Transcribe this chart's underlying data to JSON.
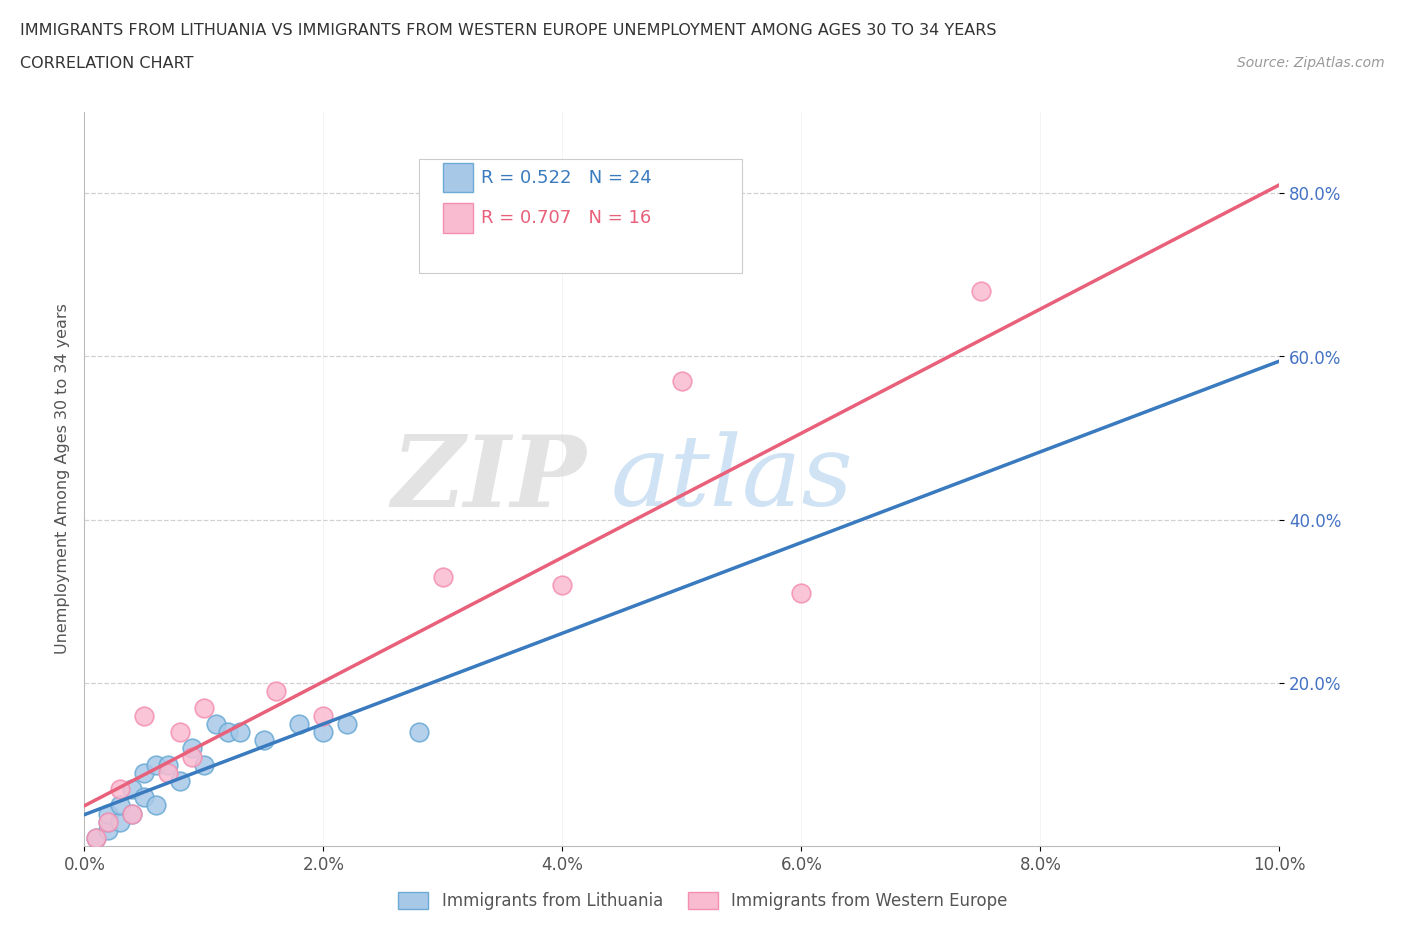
{
  "title_line1": "IMMIGRANTS FROM LITHUANIA VS IMMIGRANTS FROM WESTERN EUROPE UNEMPLOYMENT AMONG AGES 30 TO 34 YEARS",
  "title_line2": "CORRELATION CHART",
  "source_text": "Source: ZipAtlas.com",
  "ylabel": "Unemployment Among Ages 30 to 34 years",
  "xlim": [
    0.0,
    0.1
  ],
  "ylim": [
    0.0,
    0.9
  ],
  "ytick_vals": [
    0.2,
    0.4,
    0.6,
    0.8
  ],
  "xtick_vals": [
    0.0,
    0.02,
    0.04,
    0.06,
    0.08,
    0.1
  ],
  "legend_r1_R": "0.522",
  "legend_r1_N": "24",
  "legend_r2_R": "0.707",
  "legend_r2_N": "16",
  "color_blue_fill": "#a8c8e8",
  "color_blue_edge": "#6aaad4",
  "color_pink_fill": "#f8bbd0",
  "color_pink_edge": "#f48fb1",
  "color_blue_line": "#3a7bbf",
  "color_pink_line": "#e8607a",
  "color_blue_dash": "#6aaad4",
  "watermark_zip": "ZIP",
  "watermark_atlas": "atlas",
  "lithuania_x": [
    0.001,
    0.002,
    0.002,
    0.002,
    0.003,
    0.003,
    0.004,
    0.004,
    0.005,
    0.005,
    0.006,
    0.006,
    0.007,
    0.008,
    0.009,
    0.01,
    0.011,
    0.012,
    0.013,
    0.015,
    0.018,
    0.02,
    0.022,
    0.028
  ],
  "lithuania_y": [
    0.01,
    0.02,
    0.03,
    0.04,
    0.03,
    0.05,
    0.04,
    0.07,
    0.06,
    0.09,
    0.05,
    0.1,
    0.1,
    0.08,
    0.12,
    0.1,
    0.15,
    0.14,
    0.14,
    0.13,
    0.15,
    0.14,
    0.15,
    0.14
  ],
  "western_x": [
    0.001,
    0.002,
    0.003,
    0.004,
    0.005,
    0.007,
    0.008,
    0.009,
    0.01,
    0.016,
    0.02,
    0.03,
    0.04,
    0.05,
    0.06,
    0.075
  ],
  "western_y": [
    0.01,
    0.03,
    0.07,
    0.04,
    0.16,
    0.09,
    0.14,
    0.11,
    0.17,
    0.19,
    0.16,
    0.33,
    0.32,
    0.57,
    0.31,
    0.68
  ],
  "blue_line_x0": 0.0,
  "blue_line_x1": 0.1,
  "pink_line_x0": 0.0,
  "pink_line_x1": 0.1
}
